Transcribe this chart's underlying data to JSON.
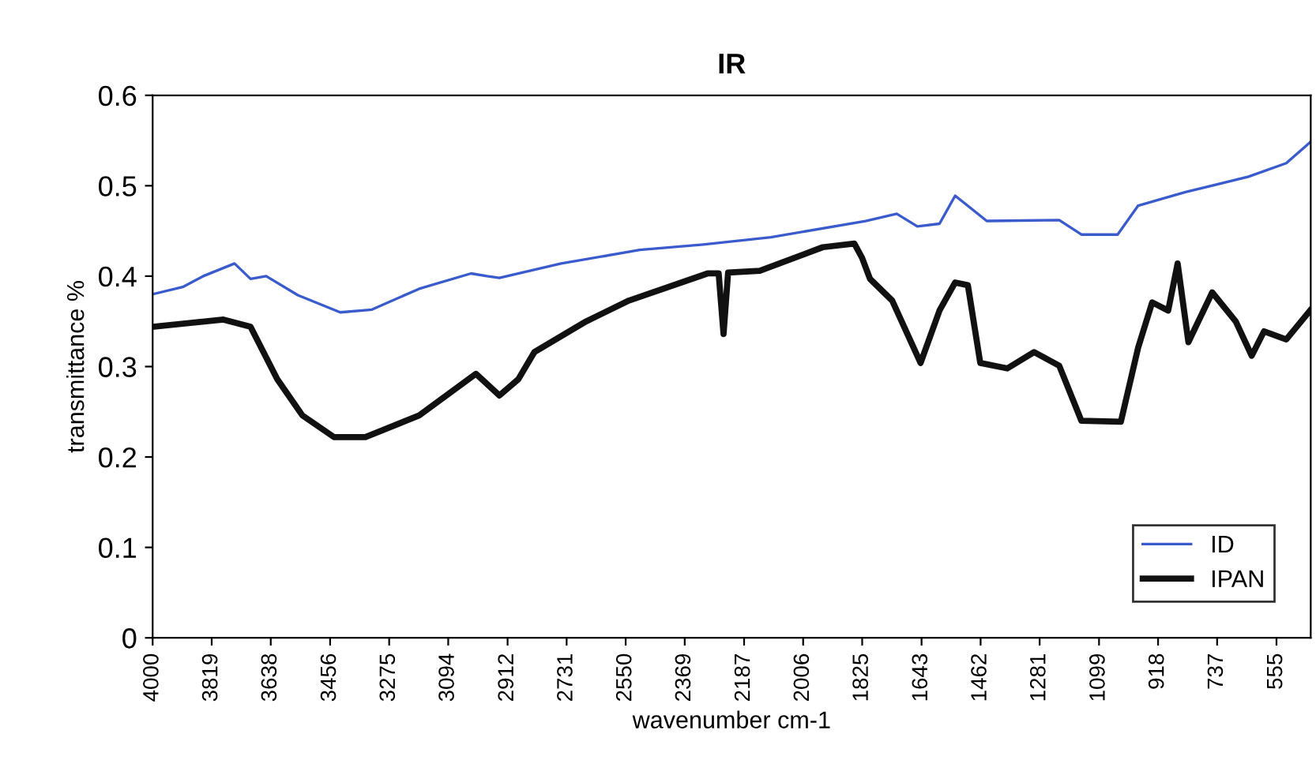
{
  "chart_data": {
    "type": "line",
    "title": "IR",
    "xlabel": "wavenumber cm-1",
    "ylabel": "transmittance %",
    "xlim": [
      4000,
      450
    ],
    "xticks": [
      4000,
      3819,
      3638,
      3456,
      3275,
      3094,
      2912,
      2731,
      2550,
      2369,
      2187,
      2006,
      1825,
      1643,
      1462,
      1281,
      1099,
      918,
      737,
      555
    ],
    "ylim": [
      0,
      0.6
    ],
    "yticks": [
      0,
      0.1,
      0.2,
      0.3,
      0.4,
      0.5,
      0.6
    ],
    "grid": false,
    "legend": "bottom right",
    "marker": "none",
    "line_style": "solid",
    "series": [
      {
        "name": "ID",
        "color": "#3a5bcc",
        "x": [
          4000,
          3908,
          3845,
          3749,
          3700,
          3652,
          3555,
          3425,
          3328,
          3183,
          3024,
          2975,
          2937,
          2748,
          2507,
          2313,
          2105,
          1815,
          1719,
          1656,
          1588,
          1540,
          1443,
          1221,
          1153,
          1042,
          979,
          834,
          641,
          525,
          452
        ],
        "values": [
          0.38,
          0.388,
          0.4,
          0.414,
          0.397,
          0.4,
          0.379,
          0.36,
          0.363,
          0.386,
          0.403,
          0.4,
          0.398,
          0.414,
          0.429,
          0.435,
          0.443,
          0.461,
          0.469,
          0.455,
          0.458,
          0.489,
          0.461,
          0.462,
          0.446,
          0.446,
          0.478,
          0.493,
          0.51,
          0.525,
          0.548
        ]
      },
      {
        "name": "IPAN",
        "color": "#111111",
        "x": [
          4000,
          3783,
          3700,
          3618,
          3541,
          3444,
          3348,
          3183,
          3009,
          2937,
          2879,
          2830,
          2671,
          2540,
          2299,
          2265,
          2250,
          2236,
          2139,
          1946,
          1849,
          1825,
          1801,
          1733,
          1646,
          1588,
          1540,
          1501,
          1463,
          1380,
          1298,
          1221,
          1153,
          1032,
          979,
          936,
          887,
          858,
          825,
          752,
          680,
          631,
          593,
          525,
          452
        ],
        "values": [
          0.344,
          0.352,
          0.344,
          0.286,
          0.246,
          0.222,
          0.222,
          0.246,
          0.292,
          0.268,
          0.286,
          0.316,
          0.35,
          0.373,
          0.403,
          0.403,
          0.336,
          0.404,
          0.406,
          0.432,
          0.436,
          0.42,
          0.397,
          0.373,
          0.304,
          0.362,
          0.393,
          0.39,
          0.304,
          0.298,
          0.316,
          0.301,
          0.24,
          0.239,
          0.321,
          0.371,
          0.362,
          0.414,
          0.327,
          0.382,
          0.35,
          0.312,
          0.339,
          0.33,
          0.362
        ]
      }
    ]
  }
}
